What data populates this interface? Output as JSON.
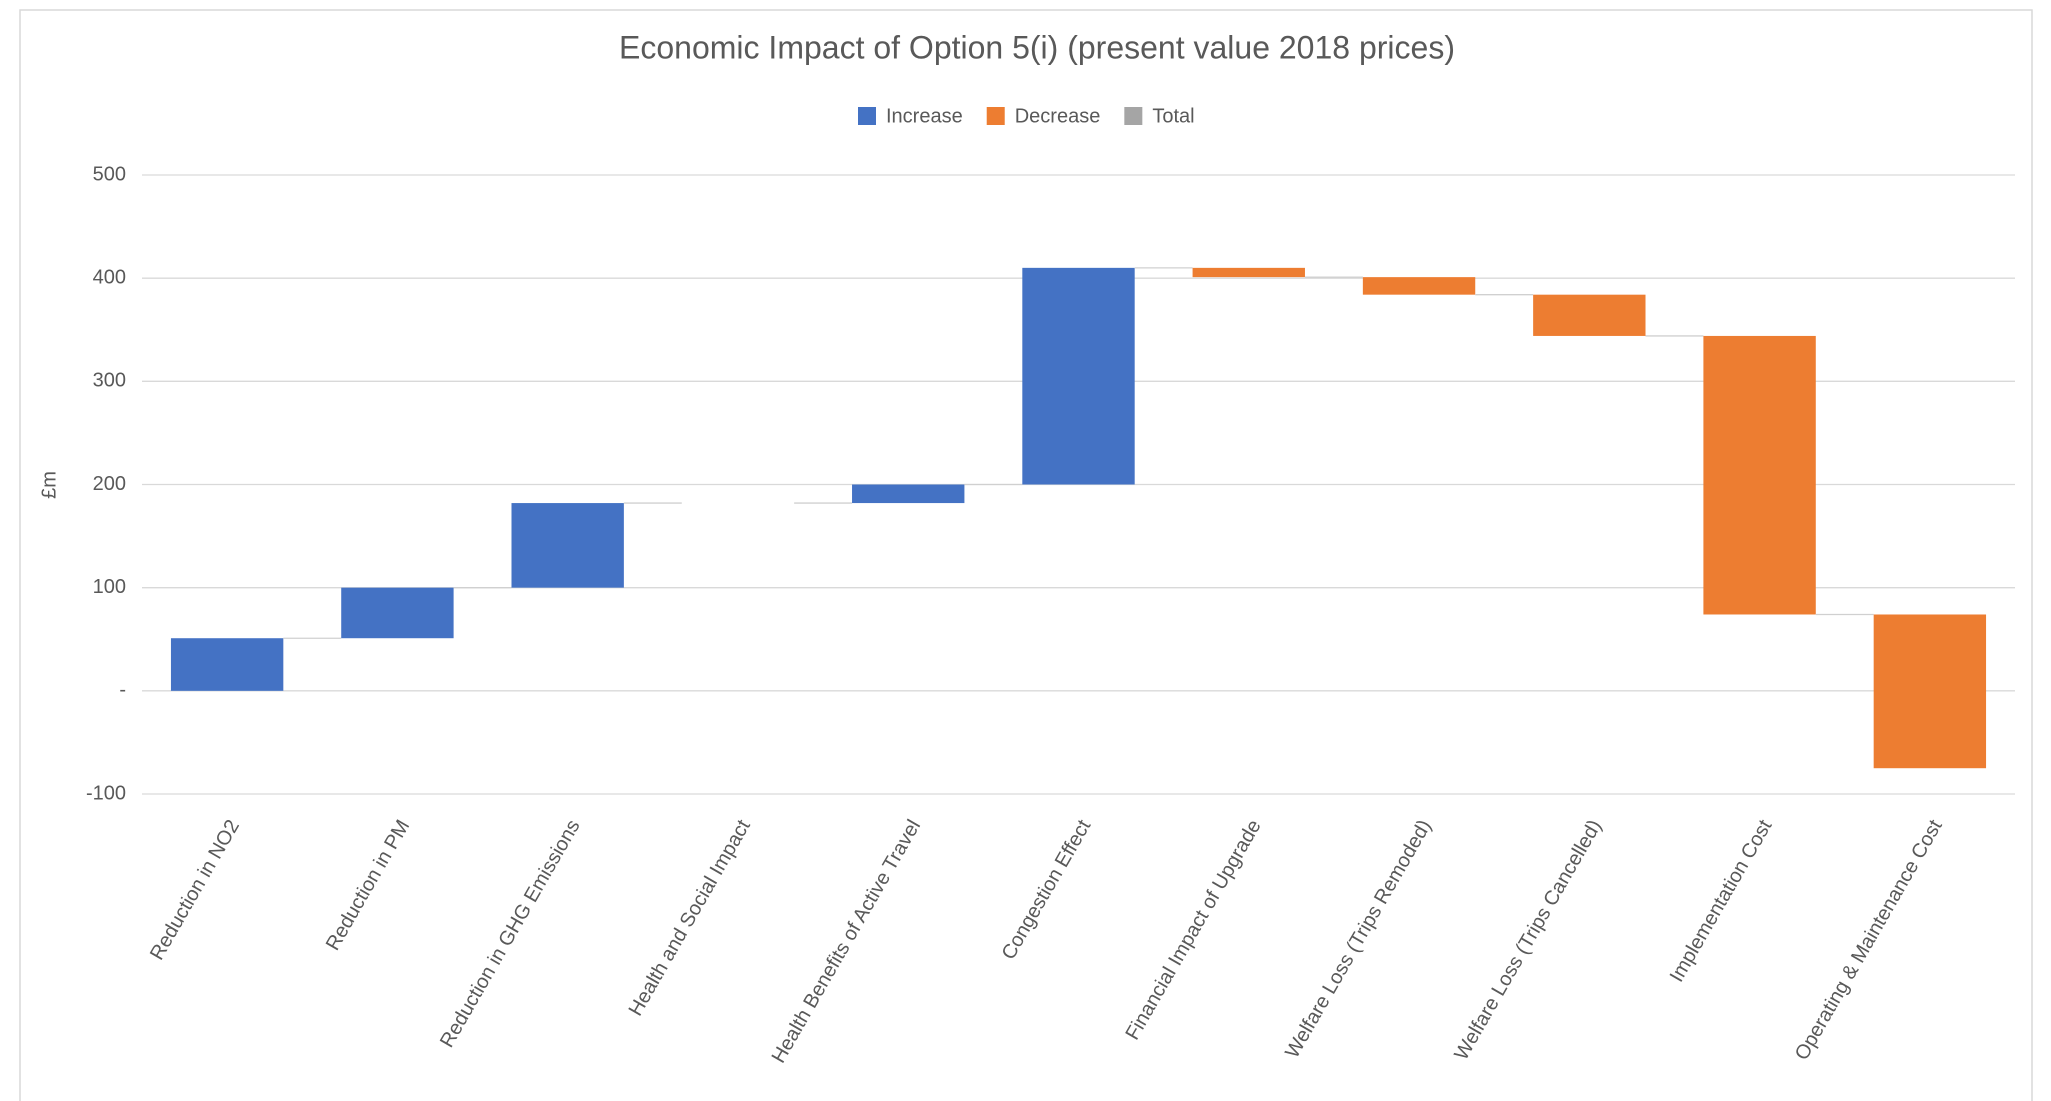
{
  "chart_data": {
    "type": "waterfall",
    "title": "Economic Impact of Option 5(i) (present value 2018 prices)",
    "y_axis_label": "£m",
    "legend": [
      {
        "name": "Increase",
        "color": "#4472c4"
      },
      {
        "name": "Decrease",
        "color": "#ed7d31"
      },
      {
        "name": "Total",
        "color": "#a5a5a5"
      }
    ],
    "categories": [
      "Reduction in NO2",
      "Reduction in PM",
      "Reduction in GHG Emissions",
      "Health and Social Impact",
      "Health Benefits of Active Travel",
      "Congestion Effect",
      "Financial Impact of Upgrade",
      "Welfare Loss (Trips Remoded)",
      "Welfare Loss (Trips Cancelled)",
      "Implementation Cost",
      "Operating & Maintenance Cost"
    ],
    "values": [
      51,
      49,
      82,
      0,
      18,
      210,
      -9,
      -17,
      -40,
      -270,
      -149
    ],
    "ylim": [
      -100,
      500
    ],
    "yticks": [
      -100,
      {
        "value": 0,
        "label": "-"
      },
      100,
      200,
      300,
      400,
      500
    ],
    "grid": true
  }
}
